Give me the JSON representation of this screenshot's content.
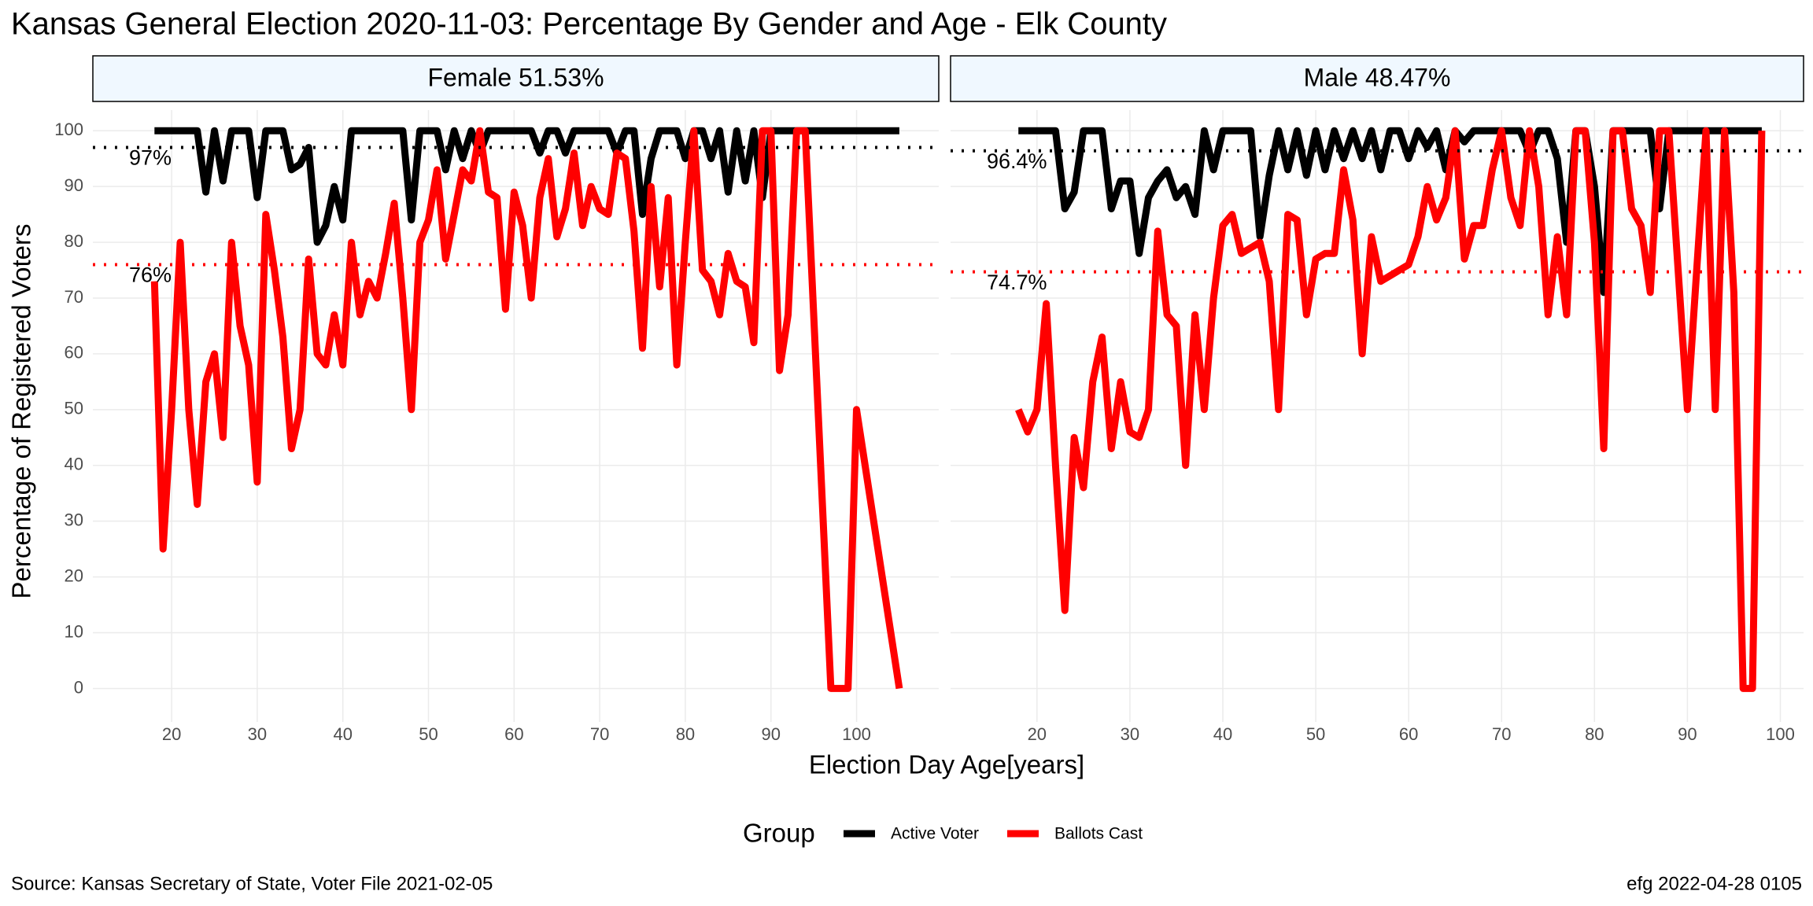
{
  "title": "Kansas General Election 2020-11-03:  Percentage By Gender and Age - Elk County",
  "y_label": "Percentage of Registered Voters",
  "x_label": "Election Day Age[years]",
  "legend_title": "Group",
  "caption_left": "Source:  Kansas Secretary of State, Voter File  2021-02-05",
  "caption_right": "efg 2022-04-28 0105",
  "chart_data": [
    {
      "type": "line",
      "title": "Female 51.53%",
      "x": [
        18,
        19,
        20,
        21,
        22,
        23,
        24,
        25,
        26,
        27,
        28,
        29,
        30,
        31,
        32,
        33,
        34,
        35,
        36,
        37,
        38,
        39,
        40,
        41,
        42,
        43,
        44,
        45,
        46,
        47,
        48,
        49,
        50,
        51,
        52,
        53,
        54,
        55,
        56,
        57,
        58,
        59,
        60,
        61,
        62,
        63,
        64,
        65,
        66,
        67,
        68,
        69,
        70,
        71,
        72,
        73,
        74,
        75,
        76,
        77,
        78,
        79,
        80,
        81,
        82,
        83,
        84,
        85,
        86,
        87,
        88,
        89,
        90,
        91,
        92,
        93,
        94,
        97,
        98,
        99,
        100,
        105
      ],
      "series": [
        {
          "name": "Active Voter",
          "color": "#000000",
          "values": [
            100,
            100,
            100,
            100,
            100,
            100,
            89,
            100,
            91,
            100,
            100,
            100,
            88,
            100,
            100,
            100,
            93,
            94,
            97,
            80,
            83,
            90,
            84,
            100,
            100,
            100,
            100,
            100,
            100,
            100,
            84,
            100,
            100,
            100,
            93,
            100,
            95,
            100,
            96,
            100,
            100,
            100,
            100,
            100,
            100,
            96,
            100,
            100,
            96,
            100,
            100,
            100,
            100,
            100,
            96,
            100,
            100,
            85,
            95,
            100,
            100,
            100,
            95,
            100,
            100,
            95,
            100,
            89,
            100,
            91,
            100,
            88,
            100,
            100,
            100,
            100,
            100,
            100,
            100,
            100,
            100,
            100
          ]
        },
        {
          "name": "Ballots Cast",
          "color": "#ff0000",
          "values": [
            73,
            25,
            50,
            80,
            50,
            33,
            55,
            60,
            45,
            80,
            65,
            58,
            37,
            85,
            75,
            63,
            43,
            50,
            77,
            60,
            58,
            67,
            58,
            80,
            67,
            73,
            70,
            78,
            87,
            70,
            50,
            80,
            84,
            93,
            77,
            85,
            93,
            91,
            100,
            89,
            88,
            68,
            89,
            83,
            70,
            88,
            95,
            81,
            86,
            96,
            83,
            90,
            86,
            85,
            96,
            95,
            82,
            61,
            90,
            72,
            88,
            58,
            80,
            100,
            75,
            73,
            67,
            78,
            73,
            72,
            62,
            100,
            100,
            57,
            67,
            100,
            100,
            0,
            0,
            0,
            50,
            0
          ]
        }
      ],
      "reference_lines": [
        {
          "value": 97,
          "label": "97%",
          "color": "#000000"
        },
        {
          "value": 76,
          "label": "76%",
          "color": "#ff0000"
        }
      ],
      "xlim": [
        10.8,
        109.6
      ],
      "ylim": [
        -6,
        103.7
      ],
      "xticks": [
        20,
        30,
        40,
        50,
        60,
        70,
        80,
        90,
        100
      ],
      "yticks": [
        0,
        10,
        20,
        30,
        40,
        50,
        60,
        70,
        80,
        90,
        100
      ],
      "grid": true
    },
    {
      "type": "line",
      "title": "Male 48.47%",
      "x": [
        18,
        19,
        20,
        21,
        22,
        23,
        24,
        25,
        26,
        27,
        28,
        29,
        30,
        31,
        32,
        33,
        34,
        35,
        36,
        37,
        38,
        39,
        40,
        41,
        42,
        43,
        44,
        45,
        46,
        47,
        48,
        49,
        50,
        51,
        52,
        53,
        54,
        55,
        56,
        57,
        58,
        59,
        60,
        61,
        62,
        63,
        64,
        65,
        66,
        67,
        68,
        69,
        70,
        71,
        72,
        73,
        74,
        75,
        76,
        77,
        78,
        79,
        80,
        81,
        82,
        83,
        84,
        85,
        86,
        87,
        88,
        89,
        90,
        91,
        92,
        93,
        94,
        95,
        96,
        97,
        98
      ],
      "series": [
        {
          "name": "Active Voter",
          "color": "#000000",
          "values": [
            100,
            100,
            100,
            100,
            100,
            86,
            89,
            100,
            100,
            100,
            86,
            91,
            91,
            78,
            88,
            91,
            93,
            88,
            90,
            85,
            100,
            93,
            100,
            100,
            100,
            100,
            81,
            92,
            100,
            93,
            100,
            92,
            100,
            93,
            100,
            95,
            100,
            95,
            100,
            93,
            100,
            100,
            95,
            100,
            97,
            100,
            93,
            100,
            98,
            100,
            100,
            100,
            100,
            100,
            100,
            96,
            100,
            100,
            95,
            80,
            100,
            100,
            90,
            71,
            100,
            100,
            100,
            100,
            100,
            86,
            100,
            100,
            100,
            100,
            100,
            100,
            100,
            100,
            100,
            100,
            100
          ]
        },
        {
          "name": "Ballots Cast",
          "color": "#ff0000",
          "values": [
            50,
            46,
            50,
            69,
            40,
            14,
            45,
            36,
            55,
            63,
            43,
            55,
            46,
            45,
            50,
            82,
            67,
            65,
            40,
            67,
            50,
            70,
            83,
            85,
            78,
            79,
            80,
            73,
            50,
            85,
            84,
            67,
            77,
            78,
            78,
            93,
            84,
            60,
            81,
            73,
            74,
            75,
            76,
            81,
            90,
            84,
            88,
            100,
            77,
            83,
            83,
            93,
            100,
            88,
            83,
            100,
            90,
            67,
            81,
            67,
            100,
            100,
            80,
            43,
            100,
            100,
            86,
            83,
            71,
            100,
            100,
            75,
            50,
            75,
            100,
            50,
            100,
            71,
            0,
            0,
            100
          ]
        }
      ],
      "reference_lines": [
        {
          "value": 96.4,
          "label": "96.4%",
          "color": "#000000"
        },
        {
          "value": 74.7,
          "label": "74.7%",
          "color": "#ff0000"
        }
      ],
      "xlim": [
        10.7,
        102.5
      ],
      "ylim": [
        -6,
        103.7
      ],
      "xticks": [
        20,
        30,
        40,
        50,
        60,
        70,
        80,
        90,
        100
      ],
      "yticks": [
        0,
        10,
        20,
        30,
        40,
        50,
        60,
        70,
        80,
        90,
        100
      ],
      "grid": true
    }
  ]
}
